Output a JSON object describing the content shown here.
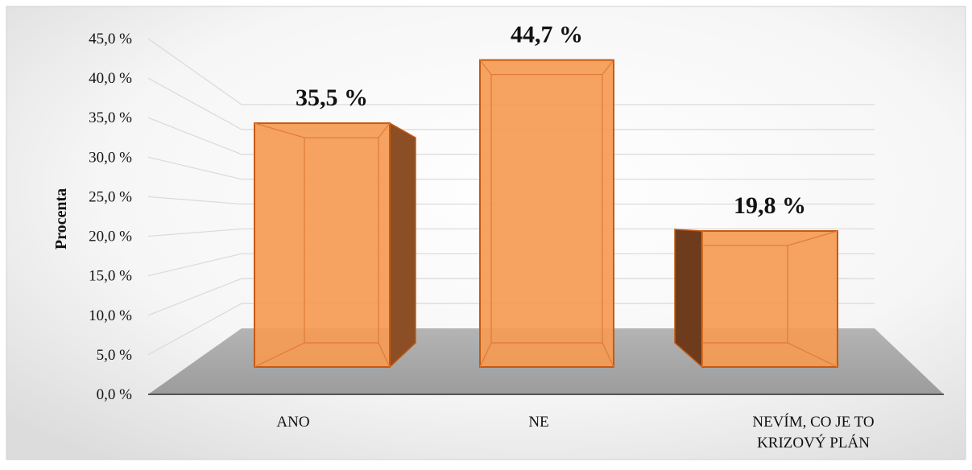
{
  "chart_data": {
    "type": "bar",
    "ylabel": "Procenta",
    "xlabel": "",
    "ylim": [
      0,
      45
    ],
    "yticks": [
      "0,0 %",
      "5,0 %",
      "10,0 %",
      "15,0 %",
      "20,0 %",
      "25,0 %",
      "30,0 %",
      "35,0 %",
      "40,0 %",
      "45,0 %"
    ],
    "categories": [
      [
        "ANO"
      ],
      [
        "NE"
      ],
      [
        "NEVÍM, CO JE TO",
        "KRIZOVÝ PLÁN"
      ]
    ],
    "values": [
      35.5,
      44.7,
      19.8
    ],
    "data_labels": [
      "35,5 %",
      "44,7 %",
      "19,8 %"
    ],
    "bar_color": "#f59a54",
    "bar_edge_color": "#c55a11",
    "floor_color": "#a8a8a8",
    "grid": true,
    "style": "3d-perspective"
  }
}
